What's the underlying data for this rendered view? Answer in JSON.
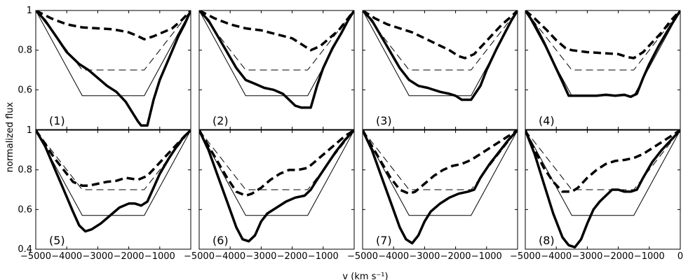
{
  "chart_data": {
    "type": "line",
    "layout": "2x4 panel grid with shared axes",
    "xlabel": "v (km s⁻¹)",
    "ylabel": "normalized flux",
    "xlim": [
      -5000,
      0
    ],
    "ylim_top_row": [
      0.4,
      1.0
    ],
    "ylim_bottom_row": [
      0.4,
      1.0
    ],
    "x_ticks": [
      -5000,
      -4000,
      -3000,
      -2000,
      -1000,
      0
    ],
    "x_tick_labels": [
      "−5000",
      "−4000",
      "−3000",
      "−2000",
      "−1000",
      "0"
    ],
    "y_ticks_top": [
      0.6,
      0.8,
      1
    ],
    "y_tick_labels_top": [
      "0.6",
      "0.8",
      "1"
    ],
    "y_ticks_bottom": [
      0.4,
      0.6,
      0.8,
      1
    ],
    "y_tick_labels_bottom": [
      "0.4",
      "0.6",
      "0.8",
      "1"
    ],
    "grid": false,
    "series_styles": {
      "model_thin_solid": {
        "color": "#000000",
        "style": "thin solid"
      },
      "model_thin_dashed": {
        "color": "#000000",
        "style": "thin dashed"
      },
      "observed_thick_solid": {
        "color": "#000000",
        "style": "thick solid"
      },
      "observed_thick_dashed": {
        "color": "#000000",
        "style": "thick dashed"
      }
    },
    "reference_profiles": {
      "thin_solid": {
        "x": [
          -5000,
          -3500,
          -1500,
          0
        ],
        "y": [
          1.0,
          0.57,
          0.57,
          1.0
        ]
      },
      "thin_dashed": {
        "x": [
          -5000,
          -3500,
          -1500,
          0
        ],
        "y": [
          1.0,
          0.7,
          0.7,
          1.0
        ]
      }
    },
    "panels": [
      {
        "label": "(1)",
        "thick_solid": {
          "x": [
            -5000,
            -4700,
            -4300,
            -4000,
            -3600,
            -3300,
            -3000,
            -2700,
            -2400,
            -2100,
            -1900,
            -1700,
            -1600,
            -1400,
            -1200,
            -1000,
            -700,
            -400,
            -200,
            0
          ],
          "y": [
            1.0,
            0.95,
            0.86,
            0.79,
            0.73,
            0.7,
            0.66,
            0.62,
            0.59,
            0.54,
            0.49,
            0.44,
            0.42,
            0.42,
            0.55,
            0.65,
            0.76,
            0.87,
            0.93,
            1.0
          ]
        },
        "thick_dashed": {
          "x": [
            -5000,
            -4500,
            -4000,
            -3500,
            -3000,
            -2500,
            -2000,
            -1700,
            -1500,
            -1200,
            -900,
            -600,
            -300,
            0
          ],
          "y": [
            1.0,
            0.96,
            0.93,
            0.915,
            0.91,
            0.905,
            0.89,
            0.87,
            0.855,
            0.87,
            0.89,
            0.91,
            0.95,
            1.0
          ]
        }
      },
      {
        "label": "(2)",
        "thick_solid": {
          "x": [
            -5000,
            -4700,
            -4400,
            -4100,
            -3800,
            -3500,
            -3200,
            -2900,
            -2600,
            -2300,
            -2100,
            -1900,
            -1700,
            -1400,
            -1200,
            -1000,
            -700,
            -400,
            -200,
            0
          ],
          "y": [
            1.0,
            0.95,
            0.87,
            0.79,
            0.71,
            0.65,
            0.63,
            0.61,
            0.6,
            0.58,
            0.55,
            0.52,
            0.51,
            0.51,
            0.62,
            0.71,
            0.81,
            0.89,
            0.95,
            1.0
          ]
        },
        "thick_dashed": {
          "x": [
            -5000,
            -4500,
            -4000,
            -3500,
            -3000,
            -2500,
            -2000,
            -1700,
            -1400,
            -1100,
            -800,
            -500,
            -200,
            0
          ],
          "y": [
            1.0,
            0.96,
            0.93,
            0.91,
            0.9,
            0.88,
            0.86,
            0.83,
            0.8,
            0.82,
            0.86,
            0.9,
            0.96,
            1.0
          ]
        }
      },
      {
        "label": "(3)",
        "thick_solid": {
          "x": [
            -5000,
            -4700,
            -4400,
            -4100,
            -3800,
            -3500,
            -3200,
            -2900,
            -2500,
            -2200,
            -2000,
            -1800,
            -1500,
            -1200,
            -1000,
            -700,
            -400,
            -200,
            0
          ],
          "y": [
            1.0,
            0.95,
            0.87,
            0.79,
            0.71,
            0.65,
            0.62,
            0.61,
            0.59,
            0.58,
            0.57,
            0.55,
            0.55,
            0.62,
            0.7,
            0.8,
            0.89,
            0.95,
            1.0
          ]
        },
        "thick_dashed": {
          "x": [
            -5000,
            -4600,
            -4200,
            -3800,
            -3400,
            -3000,
            -2600,
            -2200,
            -1900,
            -1700,
            -1400,
            -1100,
            -800,
            -500,
            -200,
            0
          ],
          "y": [
            1.0,
            0.96,
            0.93,
            0.91,
            0.89,
            0.86,
            0.83,
            0.8,
            0.77,
            0.76,
            0.78,
            0.83,
            0.88,
            0.93,
            0.97,
            1.0
          ]
        }
      },
      {
        "label": "(4)",
        "thick_solid": {
          "x": [
            -5000,
            -4700,
            -4400,
            -4100,
            -3800,
            -3600,
            -3300,
            -3000,
            -2700,
            -2400,
            -2100,
            -1800,
            -1600,
            -1400,
            -1200,
            -1000,
            -700,
            -400,
            -200,
            0
          ],
          "y": [
            1.0,
            0.93,
            0.84,
            0.74,
            0.64,
            0.57,
            0.57,
            0.57,
            0.57,
            0.575,
            0.57,
            0.575,
            0.565,
            0.58,
            0.66,
            0.73,
            0.82,
            0.9,
            0.95,
            1.0
          ]
        },
        "thick_dashed": {
          "x": [
            -5000,
            -4700,
            -4300,
            -4000,
            -3700,
            -3500,
            -3000,
            -2500,
            -2000,
            -1700,
            -1500,
            -1200,
            -900,
            -600,
            -300,
            0
          ],
          "y": [
            1.0,
            0.96,
            0.9,
            0.85,
            0.81,
            0.8,
            0.79,
            0.785,
            0.78,
            0.765,
            0.76,
            0.79,
            0.84,
            0.89,
            0.95,
            1.0
          ]
        }
      },
      {
        "label": "(5)",
        "thick_solid": {
          "x": [
            -5000,
            -4700,
            -4400,
            -4100,
            -3800,
            -3600,
            -3400,
            -3200,
            -2900,
            -2600,
            -2300,
            -2000,
            -1800,
            -1600,
            -1400,
            -1200,
            -1000,
            -700,
            -400,
            -200,
            0
          ],
          "y": [
            1.0,
            0.92,
            0.81,
            0.7,
            0.59,
            0.52,
            0.49,
            0.5,
            0.53,
            0.57,
            0.61,
            0.63,
            0.63,
            0.62,
            0.64,
            0.71,
            0.78,
            0.86,
            0.93,
            0.97,
            1.0
          ]
        },
        "thick_dashed": {
          "x": [
            -5000,
            -4700,
            -4400,
            -4100,
            -3800,
            -3500,
            -3300,
            -3000,
            -2700,
            -2400,
            -2100,
            -1900,
            -1700,
            -1400,
            -1100,
            -800,
            -500,
            -200,
            0
          ],
          "y": [
            1.0,
            0.93,
            0.86,
            0.8,
            0.74,
            0.72,
            0.72,
            0.73,
            0.74,
            0.745,
            0.76,
            0.755,
            0.75,
            0.77,
            0.82,
            0.87,
            0.92,
            0.97,
            1.0
          ]
        }
      },
      {
        "label": "(6)",
        "thick_solid": {
          "x": [
            -5000,
            -4700,
            -4400,
            -4100,
            -3800,
            -3600,
            -3400,
            -3200,
            -3000,
            -2800,
            -2500,
            -2200,
            -1900,
            -1600,
            -1400,
            -1200,
            -900,
            -600,
            -300,
            0
          ],
          "y": [
            1.0,
            0.9,
            0.77,
            0.64,
            0.51,
            0.45,
            0.44,
            0.47,
            0.54,
            0.58,
            0.61,
            0.64,
            0.66,
            0.67,
            0.7,
            0.75,
            0.82,
            0.89,
            0.95,
            1.0
          ]
        },
        "thick_dashed": {
          "x": [
            -5000,
            -4700,
            -4400,
            -4100,
            -3800,
            -3500,
            -3300,
            -3000,
            -2700,
            -2400,
            -2100,
            -1800,
            -1500,
            -1200,
            -900,
            -600,
            -300,
            0
          ],
          "y": [
            1.0,
            0.92,
            0.84,
            0.76,
            0.69,
            0.67,
            0.68,
            0.71,
            0.75,
            0.78,
            0.8,
            0.8,
            0.81,
            0.85,
            0.89,
            0.93,
            0.97,
            1.0
          ]
        }
      },
      {
        "label": "(7)",
        "thick_solid": {
          "x": [
            -5000,
            -4700,
            -4400,
            -4100,
            -3800,
            -3600,
            -3400,
            -3200,
            -3000,
            -2800,
            -2500,
            -2200,
            -1900,
            -1600,
            -1400,
            -1200,
            -900,
            -600,
            -300,
            0
          ],
          "y": [
            1.0,
            0.9,
            0.77,
            0.64,
            0.51,
            0.45,
            0.43,
            0.47,
            0.54,
            0.59,
            0.63,
            0.66,
            0.68,
            0.69,
            0.7,
            0.76,
            0.83,
            0.89,
            0.95,
            1.0
          ]
        },
        "thick_dashed": {
          "x": [
            -5000,
            -4700,
            -4400,
            -4100,
            -3800,
            -3500,
            -3300,
            -3000,
            -2700,
            -2400,
            -2100,
            -1800,
            -1500,
            -1200,
            -900,
            -600,
            -300,
            0
          ],
          "y": [
            1.0,
            0.92,
            0.84,
            0.76,
            0.7,
            0.68,
            0.69,
            0.73,
            0.77,
            0.8,
            0.82,
            0.83,
            0.85,
            0.88,
            0.91,
            0.94,
            0.97,
            1.0
          ]
        }
      },
      {
        "label": "(8)",
        "thick_solid": {
          "x": [
            -5000,
            -4700,
            -4400,
            -4100,
            -3800,
            -3600,
            -3400,
            -3200,
            -3000,
            -2800,
            -2600,
            -2400,
            -2200,
            -2000,
            -1800,
            -1600,
            -1400,
            -1200,
            -900,
            -600,
            -300,
            0
          ],
          "y": [
            1.0,
            0.88,
            0.73,
            0.58,
            0.46,
            0.42,
            0.41,
            0.45,
            0.53,
            0.6,
            0.64,
            0.67,
            0.7,
            0.7,
            0.69,
            0.69,
            0.7,
            0.76,
            0.84,
            0.9,
            0.95,
            1.0
          ]
        },
        "thick_dashed": {
          "x": [
            -5000,
            -4700,
            -4400,
            -4100,
            -3800,
            -3500,
            -3300,
            -3000,
            -2700,
            -2400,
            -2100,
            -1800,
            -1500,
            -1200,
            -900,
            -600,
            -300,
            0
          ],
          "y": [
            1.0,
            0.9,
            0.81,
            0.74,
            0.69,
            0.69,
            0.71,
            0.76,
            0.8,
            0.83,
            0.845,
            0.85,
            0.86,
            0.88,
            0.91,
            0.94,
            0.97,
            1.0
          ]
        }
      }
    ]
  }
}
